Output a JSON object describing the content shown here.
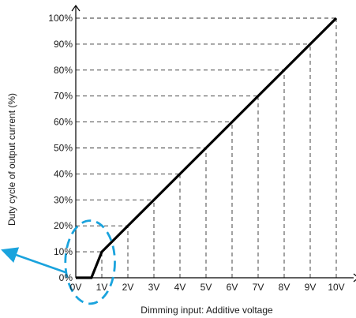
{
  "chart_data": {
    "type": "line",
    "xlabel": "Dimming input: Additive voltage",
    "ylabel": "Duty cycle of output current (%)",
    "x_tick_labels": [
      "0V",
      "1V",
      "2V",
      "3V",
      "4V",
      "5V",
      "6V",
      "7V",
      "8V",
      "9V",
      "10V"
    ],
    "y_tick_labels": [
      "0%",
      "10%",
      "20%",
      "30%",
      "40%",
      "50%",
      "60%",
      "70%",
      "80%",
      "90%",
      "100%"
    ],
    "x_ticks": [
      0,
      1,
      2,
      3,
      4,
      5,
      6,
      7,
      8,
      9,
      10
    ],
    "y_ticks": [
      0,
      10,
      20,
      30,
      40,
      50,
      60,
      70,
      80,
      90,
      100
    ],
    "xlim": [
      0,
      10
    ],
    "ylim": [
      0,
      100
    ],
    "grid": "dashed",
    "series": [
      {
        "x": [
          0,
          0.6,
          1,
          10
        ],
        "y": [
          0,
          0,
          10,
          100
        ],
        "color": "#000000"
      }
    ],
    "annotation": {
      "shape": "dashed-circle",
      "color": "#1aa3dd",
      "center": [
        0.55,
        6
      ],
      "radius_x": 0.95,
      "radius_y": 16,
      "arrow": "outward-left"
    }
  }
}
